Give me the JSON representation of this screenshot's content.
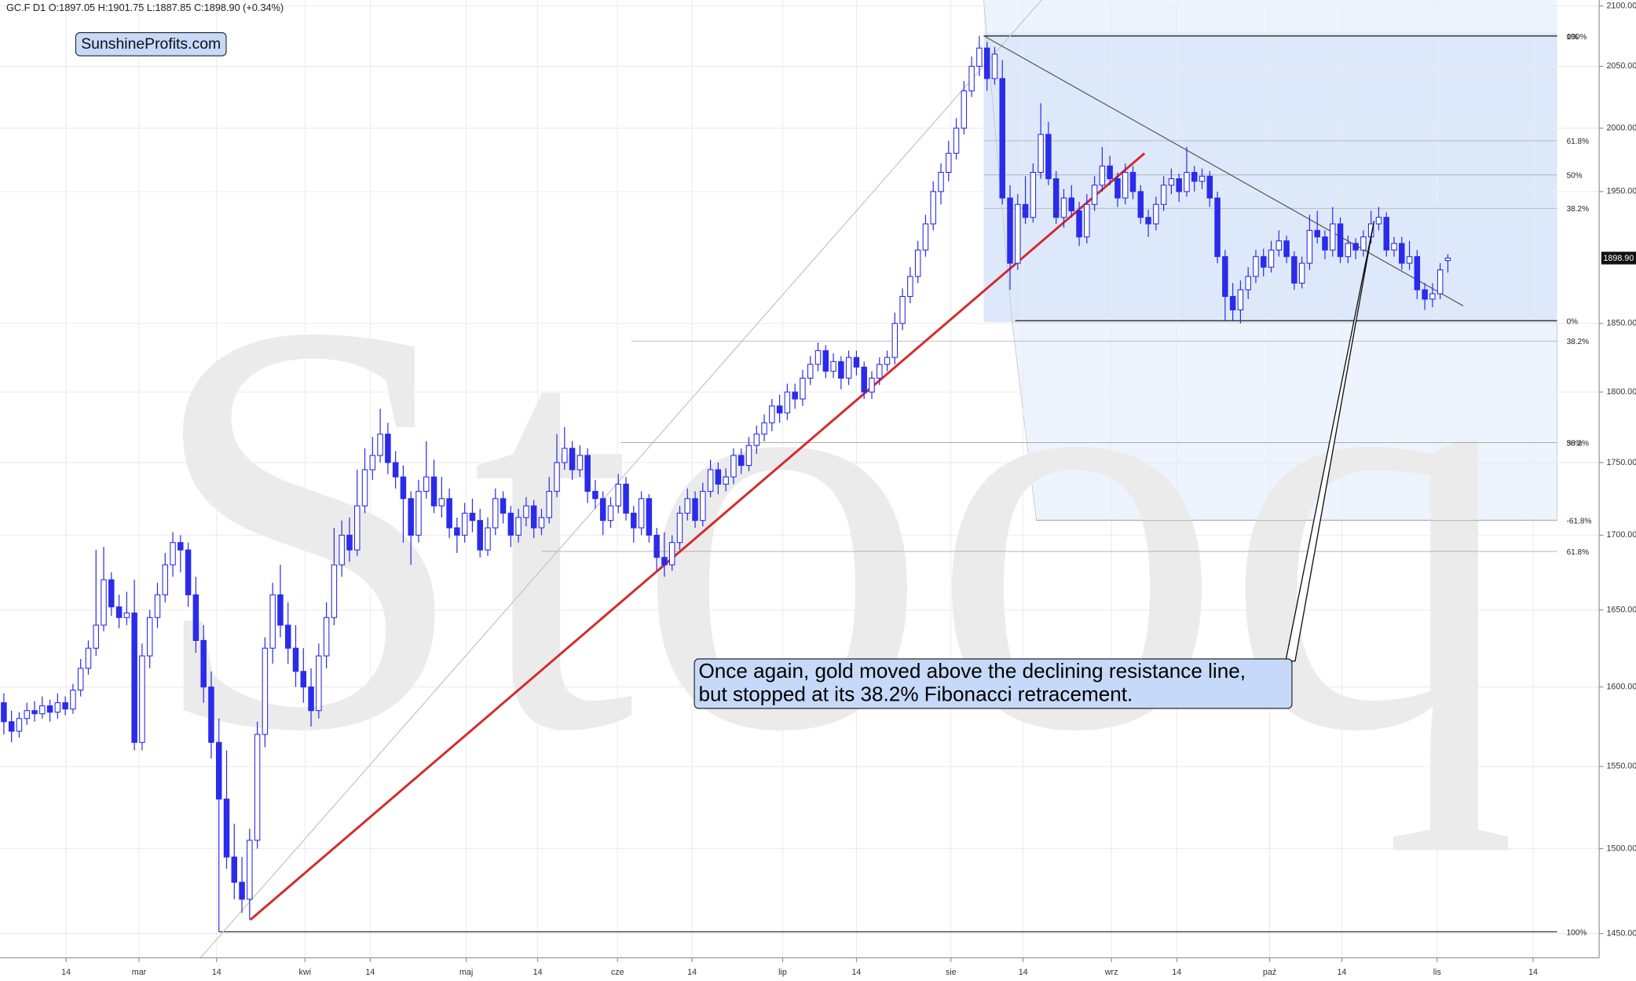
{
  "chart_data": {
    "type": "candlestick",
    "title": "GC.F  D1  O:1897.05  H:1901.75  L:1887.85  C:1898.90  (+0.34%)",
    "brand": "SunshineProfits.com",
    "watermark": "Stooq",
    "annotation": [
      "Once again, gold moved above the declining resistance line,",
      "but stopped at its 38.2% Fibonacci retracement."
    ],
    "log_scale": true,
    "grid": true,
    "up_color": "#ffffff",
    "down_color": "#2b2bea",
    "edge_color": "#2b2bea",
    "xlim": [
      -0.5,
      207.7
    ],
    "ylim": [
      1436,
      2105
    ],
    "xticks": [
      {
        "value": 8.1,
        "label": "14"
      },
      {
        "value": 17.6,
        "label": "mar"
      },
      {
        "value": 27.7,
        "label": "14"
      },
      {
        "value": 39.2,
        "label": "kwi"
      },
      {
        "value": 47.7,
        "label": "14"
      },
      {
        "value": 60.2,
        "label": "maj"
      },
      {
        "value": 69.5,
        "label": "14"
      },
      {
        "value": 79.9,
        "label": "cze"
      },
      {
        "value": 89.6,
        "label": "14"
      },
      {
        "value": 101.4,
        "label": "lip"
      },
      {
        "value": 111,
        "label": "14"
      },
      {
        "value": 123.3,
        "label": "sie"
      },
      {
        "value": 132.7,
        "label": "14"
      },
      {
        "value": 144.2,
        "label": "wrz"
      },
      {
        "value": 152.7,
        "label": "14"
      },
      {
        "value": 164.8,
        "label": "paź"
      },
      {
        "value": 174.2,
        "label": "14"
      },
      {
        "value": 186.6,
        "label": "lis"
      },
      {
        "value": 199.1,
        "label": "14"
      }
    ],
    "yticks": [
      {
        "value": 1450,
        "label": "1450.00"
      },
      {
        "value": 1500,
        "label": "1500.00"
      },
      {
        "value": 1550,
        "label": "1550.00"
      },
      {
        "value": 1600,
        "label": "1600.00"
      },
      {
        "value": 1650,
        "label": "1650.00"
      },
      {
        "value": 1700,
        "label": "1700.00"
      },
      {
        "value": 1750,
        "label": "1750.00"
      },
      {
        "value": 1800,
        "label": "1800.00"
      },
      {
        "value": 1850,
        "label": "1850.00"
      },
      {
        "value": 1950,
        "label": "1950.00"
      },
      {
        "value": 2000,
        "label": "2000.00"
      },
      {
        "value": 2050,
        "label": "2050.00"
      },
      {
        "value": 2100,
        "label": "2100.00"
      }
    ],
    "last_label": "1898.90",
    "fib_levels": [
      {
        "value": 2075,
        "label": "100%"
      },
      {
        "value": 2075,
        "label": "0%"
      },
      {
        "value": 1990,
        "label": "61.8%"
      },
      {
        "value": 1963,
        "label": "50%"
      },
      {
        "value": 1937,
        "label": "38.2%"
      },
      {
        "value": 1852,
        "label": "0%"
      },
      {
        "value": 1837,
        "label": "38.2%"
      },
      {
        "value": 1764,
        "label": "50%"
      },
      {
        "value": 1764,
        "label": "38.2%"
      },
      {
        "value": 1710,
        "label": "-61.8%"
      },
      {
        "value": 1689,
        "label": "61.8%"
      },
      {
        "value": 1451,
        "label": "100%"
      }
    ],
    "trendlines": [
      {
        "color": "#c4c4c4",
        "points": [
          [
            24.8,
            1432
          ],
          [
            135.1,
            2105
          ]
        ]
      },
      {
        "color": "#555555",
        "points": [
          [
            127.6,
            2075
          ],
          [
            190,
            1863
          ]
        ]
      },
      {
        "color": "#d42a2a",
        "points": [
          [
            32.1,
            1458
          ],
          [
            148.5,
            1980
          ]
        ]
      }
    ],
    "ohlc": [
      [
        1590,
        1596,
        1570,
        1578
      ],
      [
        1578,
        1585,
        1565,
        1572
      ],
      [
        1572,
        1584,
        1568,
        1580
      ],
      [
        1580,
        1590,
        1576,
        1585
      ],
      [
        1585,
        1591,
        1578,
        1583
      ],
      [
        1583,
        1594,
        1580,
        1588
      ],
      [
        1588,
        1592,
        1578,
        1584
      ],
      [
        1584,
        1596,
        1580,
        1590
      ],
      [
        1590,
        1594,
        1582,
        1586
      ],
      [
        1586,
        1602,
        1583,
        1598
      ],
      [
        1598,
        1618,
        1594,
        1612
      ],
      [
        1612,
        1630,
        1608,
        1625
      ],
      [
        1625,
        1690,
        1620,
        1640
      ],
      [
        1640,
        1692,
        1636,
        1670
      ],
      [
        1670,
        1675,
        1646,
        1652
      ],
      [
        1652,
        1660,
        1638,
        1645
      ],
      [
        1645,
        1662,
        1640,
        1648
      ],
      [
        1648,
        1670,
        1560,
        1565
      ],
      [
        1565,
        1628,
        1560,
        1620
      ],
      [
        1620,
        1650,
        1612,
        1645
      ],
      [
        1645,
        1668,
        1638,
        1660
      ],
      [
        1660,
        1688,
        1655,
        1680
      ],
      [
        1680,
        1702,
        1672,
        1695
      ],
      [
        1695,
        1700,
        1675,
        1690
      ],
      [
        1690,
        1695,
        1652,
        1660
      ],
      [
        1660,
        1672,
        1622,
        1630
      ],
      [
        1630,
        1640,
        1590,
        1600
      ],
      [
        1600,
        1610,
        1555,
        1565
      ],
      [
        1565,
        1580,
        1451,
        1530
      ],
      [
        1530,
        1560,
        1488,
        1495
      ],
      [
        1495,
        1515,
        1470,
        1480
      ],
      [
        1480,
        1495,
        1462,
        1470
      ],
      [
        1470,
        1512,
        1458,
        1505
      ],
      [
        1505,
        1578,
        1500,
        1570
      ],
      [
        1570,
        1632,
        1562,
        1625
      ],
      [
        1625,
        1668,
        1615,
        1660
      ],
      [
        1660,
        1680,
        1632,
        1640
      ],
      [
        1640,
        1655,
        1615,
        1625
      ],
      [
        1625,
        1640,
        1600,
        1610
      ],
      [
        1610,
        1625,
        1590,
        1600
      ],
      [
        1600,
        1612,
        1575,
        1585
      ],
      [
        1585,
        1628,
        1580,
        1620
      ],
      [
        1620,
        1655,
        1612,
        1645
      ],
      [
        1645,
        1705,
        1640,
        1680
      ],
      [
        1680,
        1710,
        1672,
        1700
      ],
      [
        1700,
        1712,
        1682,
        1690
      ],
      [
        1690,
        1745,
        1686,
        1720
      ],
      [
        1720,
        1760,
        1715,
        1745
      ],
      [
        1745,
        1768,
        1738,
        1755
      ],
      [
        1755,
        1788,
        1750,
        1770
      ],
      [
        1770,
        1778,
        1742,
        1750
      ],
      [
        1750,
        1758,
        1732,
        1740
      ],
      [
        1740,
        1748,
        1695,
        1725
      ],
      [
        1725,
        1730,
        1680,
        1700
      ],
      [
        1700,
        1738,
        1695,
        1730
      ],
      [
        1730,
        1765,
        1725,
        1740
      ],
      [
        1740,
        1752,
        1715,
        1720
      ],
      [
        1720,
        1740,
        1712,
        1725
      ],
      [
        1725,
        1732,
        1698,
        1705
      ],
      [
        1705,
        1712,
        1688,
        1700
      ],
      [
        1700,
        1722,
        1695,
        1715
      ],
      [
        1715,
        1725,
        1702,
        1710
      ],
      [
        1710,
        1718,
        1685,
        1690
      ],
      [
        1690,
        1712,
        1686,
        1705
      ],
      [
        1705,
        1732,
        1700,
        1725
      ],
      [
        1725,
        1730,
        1708,
        1715
      ],
      [
        1715,
        1720,
        1692,
        1700
      ],
      [
        1700,
        1718,
        1695,
        1712
      ],
      [
        1712,
        1726,
        1706,
        1720
      ],
      [
        1720,
        1724,
        1698,
        1705
      ],
      [
        1705,
        1718,
        1700,
        1712
      ],
      [
        1712,
        1740,
        1708,
        1730
      ],
      [
        1730,
        1770,
        1726,
        1750
      ],
      [
        1750,
        1775,
        1745,
        1760
      ],
      [
        1760,
        1765,
        1738,
        1745
      ],
      [
        1745,
        1762,
        1740,
        1755
      ],
      [
        1755,
        1760,
        1722,
        1730
      ],
      [
        1730,
        1738,
        1718,
        1725
      ],
      [
        1725,
        1730,
        1700,
        1710
      ],
      [
        1710,
        1726,
        1705,
        1720
      ],
      [
        1720,
        1742,
        1715,
        1735
      ],
      [
        1735,
        1740,
        1710,
        1715
      ],
      [
        1715,
        1720,
        1695,
        1705
      ],
      [
        1705,
        1730,
        1700,
        1725
      ],
      [
        1725,
        1728,
        1695,
        1700
      ],
      [
        1700,
        1705,
        1676,
        1685
      ],
      [
        1685,
        1702,
        1672,
        1680
      ],
      [
        1680,
        1700,
        1676,
        1695
      ],
      [
        1695,
        1720,
        1690,
        1715
      ],
      [
        1715,
        1732,
        1710,
        1725
      ],
      [
        1725,
        1730,
        1705,
        1710
      ],
      [
        1710,
        1736,
        1706,
        1730
      ],
      [
        1730,
        1752,
        1726,
        1745
      ],
      [
        1745,
        1750,
        1728,
        1735
      ],
      [
        1735,
        1746,
        1730,
        1740
      ],
      [
        1740,
        1760,
        1735,
        1755
      ],
      [
        1755,
        1760,
        1742,
        1748
      ],
      [
        1748,
        1768,
        1744,
        1762
      ],
      [
        1762,
        1776,
        1756,
        1770
      ],
      [
        1770,
        1784,
        1765,
        1778
      ],
      [
        1778,
        1795,
        1772,
        1790
      ],
      [
        1790,
        1798,
        1778,
        1785
      ],
      [
        1785,
        1806,
        1780,
        1800
      ],
      [
        1800,
        1806,
        1788,
        1795
      ],
      [
        1795,
        1816,
        1790,
        1810
      ],
      [
        1810,
        1826,
        1805,
        1820
      ],
      [
        1820,
        1836,
        1815,
        1830
      ],
      [
        1830,
        1834,
        1810,
        1815
      ],
      [
        1815,
        1828,
        1810,
        1822
      ],
      [
        1822,
        1826,
        1802,
        1810
      ],
      [
        1810,
        1830,
        1805,
        1825
      ],
      [
        1825,
        1830,
        1812,
        1818
      ],
      [
        1818,
        1822,
        1795,
        1800
      ],
      [
        1800,
        1815,
        1795,
        1810
      ],
      [
        1810,
        1825,
        1805,
        1820
      ],
      [
        1820,
        1830,
        1815,
        1825
      ],
      [
        1825,
        1858,
        1820,
        1850
      ],
      [
        1850,
        1876,
        1845,
        1870
      ],
      [
        1870,
        1892,
        1865,
        1885
      ],
      [
        1885,
        1912,
        1880,
        1905
      ],
      [
        1905,
        1932,
        1900,
        1925
      ],
      [
        1925,
        1958,
        1920,
        1950
      ],
      [
        1950,
        1972,
        1940,
        1965
      ],
      [
        1965,
        1990,
        1958,
        1980
      ],
      [
        1980,
        2008,
        1975,
        2000
      ],
      [
        2000,
        2038,
        1995,
        2030
      ],
      [
        2030,
        2058,
        2025,
        2050
      ],
      [
        2050,
        2075,
        2042,
        2065
      ],
      [
        2065,
        2070,
        2030,
        2040
      ],
      [
        2040,
        2066,
        2035,
        2060
      ],
      [
        2040,
        2055,
        1940,
        1945
      ],
      [
        1945,
        1955,
        1875,
        1895
      ],
      [
        1895,
        1948,
        1890,
        1940
      ],
      [
        1940,
        1962,
        1925,
        1930
      ],
      [
        1930,
        1972,
        1926,
        1965
      ],
      [
        1965,
        2020,
        1960,
        1995
      ],
      [
        1995,
        2005,
        1955,
        1960
      ],
      [
        1960,
        1966,
        1925,
        1930
      ],
      [
        1930,
        1952,
        1922,
        1945
      ],
      [
        1945,
        1955,
        1930,
        1935
      ],
      [
        1935,
        1942,
        1908,
        1915
      ],
      [
        1915,
        1948,
        1910,
        1940
      ],
      [
        1940,
        1962,
        1935,
        1955
      ],
      [
        1955,
        1985,
        1950,
        1970
      ],
      [
        1970,
        1978,
        1955,
        1960
      ],
      [
        1960,
        1965,
        1938,
        1945
      ],
      [
        1945,
        1972,
        1940,
        1965
      ],
      [
        1965,
        1970,
        1944,
        1950
      ],
      [
        1950,
        1955,
        1925,
        1930
      ],
      [
        1930,
        1936,
        1915,
        1925
      ],
      [
        1925,
        1946,
        1920,
        1940
      ],
      [
        1940,
        1962,
        1935,
        1955
      ],
      [
        1955,
        1968,
        1948,
        1960
      ],
      [
        1960,
        1964,
        1942,
        1950
      ],
      [
        1950,
        1985,
        1946,
        1965
      ],
      [
        1965,
        1970,
        1950,
        1958
      ],
      [
        1958,
        1968,
        1952,
        1962
      ],
      [
        1962,
        1966,
        1938,
        1945
      ],
      [
        1945,
        1950,
        1895,
        1900
      ],
      [
        1900,
        1905,
        1852,
        1870
      ],
      [
        1870,
        1880,
        1852,
        1860
      ],
      [
        1860,
        1882,
        1850,
        1875
      ],
      [
        1875,
        1892,
        1868,
        1885
      ],
      [
        1885,
        1905,
        1880,
        1900
      ],
      [
        1900,
        1906,
        1885,
        1892
      ],
      [
        1892,
        1912,
        1888,
        1905
      ],
      [
        1905,
        1920,
        1900,
        1912
      ],
      [
        1912,
        1916,
        1895,
        1900
      ],
      [
        1900,
        1904,
        1875,
        1880
      ],
      [
        1880,
        1900,
        1876,
        1895
      ],
      [
        1895,
        1932,
        1890,
        1920
      ],
      [
        1920,
        1935,
        1910,
        1915
      ],
      [
        1915,
        1920,
        1898,
        1905
      ],
      [
        1905,
        1938,
        1900,
        1925
      ],
      [
        1925,
        1930,
        1895,
        1900
      ],
      [
        1900,
        1916,
        1895,
        1910
      ],
      [
        1910,
        1914,
        1898,
        1905
      ],
      [
        1905,
        1920,
        1900,
        1915
      ],
      [
        1915,
        1935,
        1910,
        1925
      ],
      [
        1925,
        1938,
        1920,
        1930
      ],
      [
        1930,
        1934,
        1900,
        1905
      ],
      [
        1905,
        1915,
        1900,
        1910
      ],
      [
        1910,
        1915,
        1890,
        1895
      ],
      [
        1895,
        1912,
        1890,
        1900
      ],
      [
        1900,
        1905,
        1868,
        1875
      ],
      [
        1875,
        1880,
        1860,
        1868
      ],
      [
        1868,
        1880,
        1862,
        1872
      ],
      [
        1872,
        1895,
        1868,
        1890
      ],
      [
        1897.05,
        1901.75,
        1887.85,
        1898.9
      ]
    ]
  }
}
